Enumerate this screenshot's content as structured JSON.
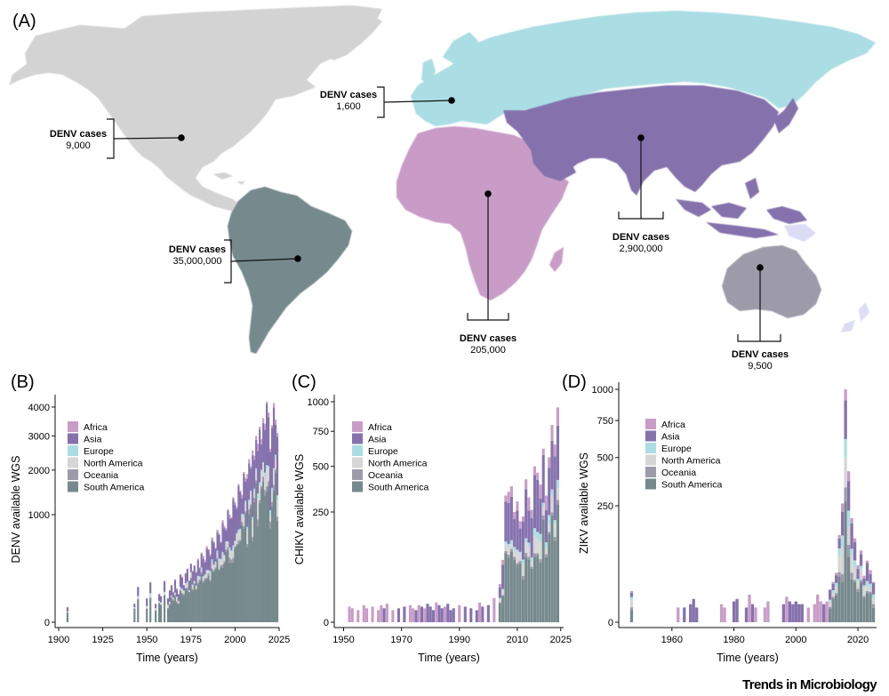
{
  "figure": {
    "panel_labels": [
      "(A)",
      "(B)",
      "(C)",
      "(D)"
    ],
    "journal": "Trends in Microbiology"
  },
  "colors": {
    "Africa": "#c99cc8",
    "Asia": "#8572ad",
    "Europe": "#abdde4",
    "North America": "#d6d6d6",
    "Oceania": "#9d9ba9",
    "South America": "#76898d",
    "land_other": "#d3d3d3",
    "islands": "#dcdcf5"
  },
  "map": {
    "callouts": [
      {
        "region": "North America",
        "label": "DENV cases",
        "value": "9,000"
      },
      {
        "region": "Europe",
        "label": "DENV cases",
        "value": "1,600"
      },
      {
        "region": "South America",
        "label": "DENV cases",
        "value": "35,000,000"
      },
      {
        "region": "Africa",
        "label": "DENV cases",
        "value": "205,000"
      },
      {
        "region": "Asia",
        "label": "DENV cases",
        "value": "2,900,000"
      },
      {
        "region": "Oceania",
        "label": "DENV cases",
        "value": "9,500"
      }
    ]
  },
  "chart_data": [
    {
      "panel": "B",
      "type": "bar",
      "stacked": true,
      "title": "",
      "xlabel": "Time (years)",
      "ylabel": "DENV available WGS",
      "xlim": [
        1900,
        2025
      ],
      "xticks": [
        1900,
        1925,
        1950,
        1975,
        2000,
        2025
      ],
      "ylim": [
        0,
        4200
      ],
      "yscale": "sqrt",
      "yticks": [
        0,
        1000,
        2000,
        3000,
        4000
      ],
      "legend": [
        "Africa",
        "Asia",
        "Europe",
        "North America",
        "Oceania",
        "South America"
      ],
      "legend_position": "top-left",
      "x": [
        1905,
        1943,
        1945,
        1950,
        1952,
        1955,
        1957,
        1958,
        1960,
        1962,
        1963,
        1964,
        1965,
        1966,
        1967,
        1968,
        1969,
        1970,
        1971,
        1972,
        1973,
        1974,
        1975,
        1976,
        1977,
        1978,
        1979,
        1980,
        1981,
        1982,
        1983,
        1984,
        1985,
        1986,
        1987,
        1988,
        1989,
        1990,
        1991,
        1992,
        1993,
        1994,
        1995,
        1996,
        1997,
        1998,
        1999,
        2000,
        2001,
        2002,
        2003,
        2004,
        2005,
        2006,
        2007,
        2008,
        2009,
        2010,
        2011,
        2012,
        2013,
        2014,
        2015,
        2016,
        2017,
        2018,
        2019,
        2020,
        2021,
        2022,
        2023,
        2024
      ],
      "totals": [
        20,
        30,
        110,
        50,
        140,
        30,
        70,
        60,
        150,
        50,
        90,
        120,
        80,
        160,
        100,
        70,
        200,
        180,
        120,
        210,
        250,
        150,
        300,
        230,
        280,
        220,
        350,
        260,
        420,
        380,
        330,
        500,
        460,
        400,
        620,
        560,
        480,
        740,
        680,
        560,
        900,
        800,
        760,
        1100,
        1000,
        950,
        1350,
        1250,
        1150,
        1650,
        1500,
        1400,
        1950,
        1800,
        1900,
        2300,
        2100,
        2550,
        2400,
        3000,
        2750,
        3300,
        2900,
        3600,
        3400,
        4200,
        3800,
        2600,
        3350,
        4150,
        3550,
        3100
      ],
      "composition": {
        "Africa": 0.04,
        "Asia": 0.42,
        "Europe": 0.02,
        "North America": 0.09,
        "Oceania": 0.03,
        "South America": 0.4
      }
    },
    {
      "panel": "C",
      "type": "bar",
      "stacked": true,
      "title": "",
      "xlabel": "Time (years)",
      "ylabel": "CHIKV available WGS",
      "xlim": [
        1948,
        2026
      ],
      "xticks": [
        1950,
        1970,
        1990,
        2010,
        2025
      ],
      "ylim": [
        0,
        1000
      ],
      "yscale": "sqrt",
      "yticks": [
        0,
        250,
        500,
        750,
        1000
      ],
      "legend": [
        "Africa",
        "Asia",
        "Europe",
        "North America",
        "Oceania",
        "South America"
      ],
      "legend_position": "top-left",
      "x": [
        1952,
        1953,
        1955,
        1957,
        1958,
        1960,
        1962,
        1963,
        1964,
        1965,
        1967,
        1969,
        1971,
        1973,
        1974,
        1975,
        1976,
        1977,
        1978,
        1979,
        1980,
        1981,
        1982,
        1983,
        1984,
        1985,
        1986,
        1987,
        1988,
        1990,
        1992,
        1994,
        1996,
        1997,
        1998,
        2000,
        2002,
        2004,
        2005,
        2006,
        2007,
        2008,
        2009,
        2010,
        2011,
        2012,
        2013,
        2014,
        2015,
        2016,
        2017,
        2018,
        2019,
        2020,
        2021,
        2022,
        2023,
        2024
      ],
      "totals": [
        5,
        4,
        3,
        6,
        4,
        5,
        3,
        6,
        4,
        7,
        3,
        4,
        5,
        6,
        4,
        3,
        6,
        5,
        4,
        7,
        5,
        3,
        8,
        6,
        4,
        5,
        7,
        3,
        4,
        6,
        5,
        4,
        3,
        8,
        5,
        6,
        12,
        30,
        80,
        330,
        350,
        380,
        250,
        300,
        210,
        230,
        420,
        320,
        260,
        500,
        460,
        390,
        620,
        330,
        560,
        800,
        650,
        950
      ],
      "composition": {
        "Africa": 0.12,
        "Asia": 0.48,
        "Europe": 0.04,
        "North America": 0.08,
        "Oceania": 0.02,
        "South America": 0.26
      }
    },
    {
      "panel": "D",
      "type": "bar",
      "stacked": true,
      "title": "",
      "xlabel": "Time (years)",
      "ylabel": "ZIKV available WGS",
      "xlim": [
        1944,
        2026
      ],
      "xticks": [
        1960,
        1980,
        2000,
        2020
      ],
      "ylim": [
        0,
        1000
      ],
      "yscale": "sqrt",
      "yticks": [
        0,
        250,
        500,
        750,
        1000
      ],
      "legend": [
        "Africa",
        "Asia",
        "Europe",
        "North America",
        "Oceania",
        "South America"
      ],
      "legend_position": "top-left",
      "x": [
        1947,
        1962,
        1964,
        1966,
        1967,
        1968,
        1976,
        1977,
        1980,
        1981,
        1984,
        1985,
        1986,
        1987,
        1990,
        1991,
        1996,
        1997,
        1998,
        1999,
        2000,
        2001,
        2002,
        2004,
        2006,
        2007,
        2008,
        2009,
        2010,
        2011,
        2012,
        2013,
        2014,
        2015,
        2016,
        2017,
        2018,
        2019,
        2020,
        2021,
        2022,
        2023,
        2024,
        2025
      ],
      "totals": [
        18,
        4,
        4,
        6,
        10,
        4,
        6,
        4,
        8,
        10,
        4,
        14,
        6,
        4,
        4,
        8,
        6,
        12,
        8,
        6,
        8,
        6,
        6,
        4,
        6,
        14,
        8,
        6,
        8,
        20,
        30,
        45,
        140,
        260,
        1000,
        420,
        200,
        130,
        60,
        95,
        40,
        70,
        50,
        30
      ],
      "composition": {
        "Africa": 0.1,
        "Asia": 0.34,
        "Europe": 0.1,
        "North America": 0.18,
        "Oceania": 0.05,
        "South America": 0.23
      }
    }
  ]
}
